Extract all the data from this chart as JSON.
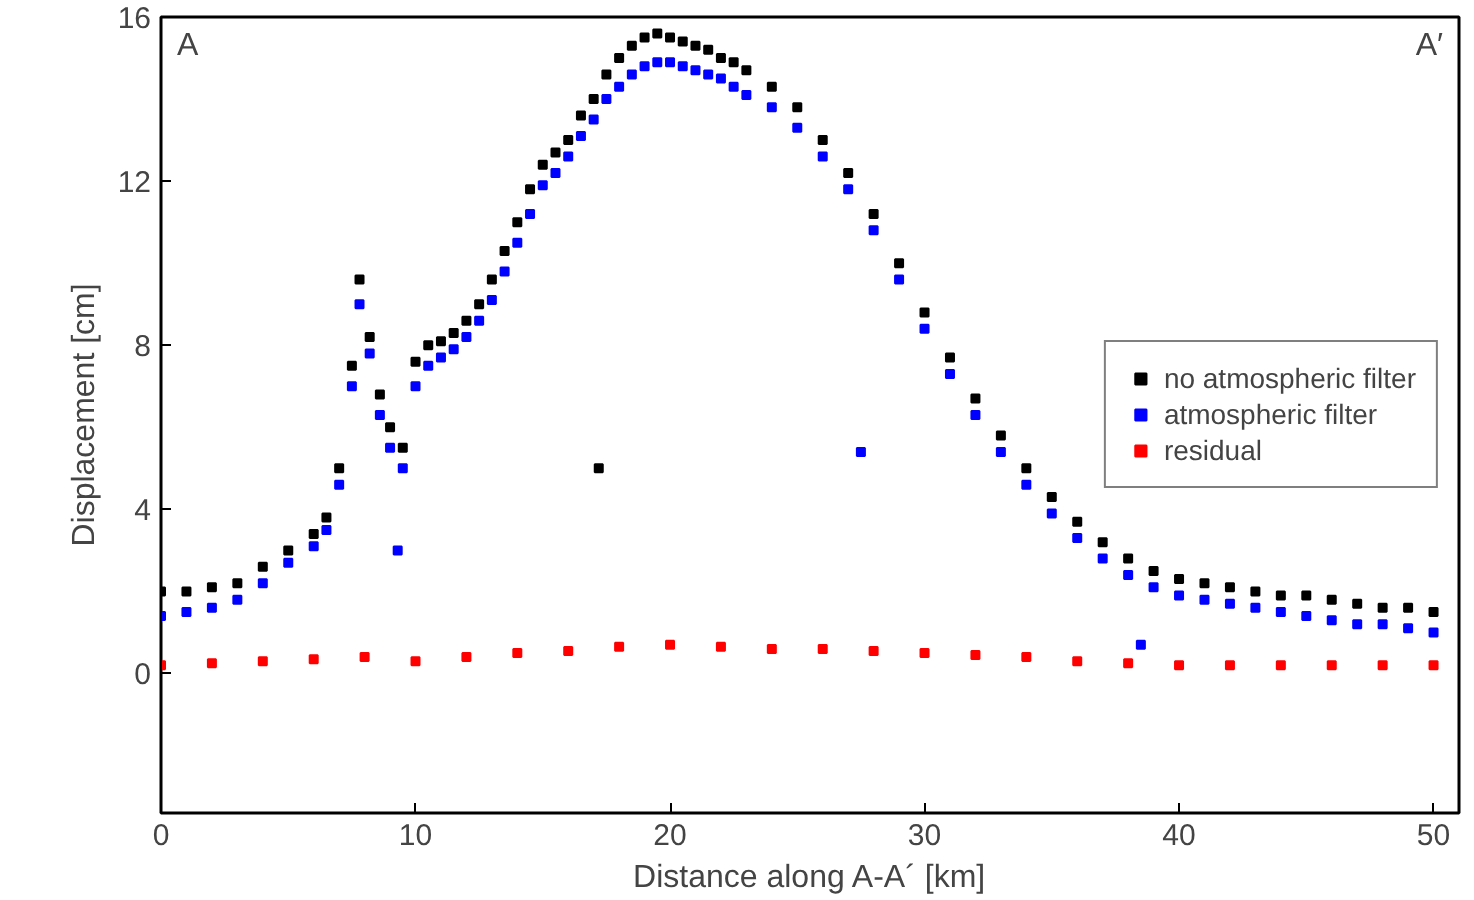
{
  "chart_data": {
    "type": "scatter",
    "xlabel": "Distance along A-A´ [km]",
    "ylabel": "Displacement [cm]",
    "xlim": [
      0,
      51
    ],
    "ylim": [
      -3.4,
      16
    ],
    "xticks": [
      0,
      10,
      20,
      30,
      40,
      50
    ],
    "yticks": [
      0,
      4,
      8,
      12,
      16
    ],
    "grid": false,
    "legend": "right",
    "marker": "square",
    "annotations": [
      "A",
      "A′"
    ],
    "series": [
      {
        "name": "no atmospheric filter",
        "color": "#000000",
        "x": [
          0,
          1,
          2,
          3,
          4,
          5,
          6,
          6.5,
          7,
          7.5,
          7.8,
          8.2,
          8.6,
          9,
          9.5,
          10,
          10.5,
          11,
          11.5,
          12,
          12.5,
          13,
          13.5,
          14,
          14.5,
          15,
          15.5,
          16,
          16.5,
          17,
          17.2,
          17.5,
          18,
          18.5,
          19,
          19.5,
          20,
          20.5,
          21,
          21.5,
          22,
          22.5,
          23,
          24,
          25,
          26,
          27,
          28,
          29,
          30,
          31,
          32,
          33,
          34,
          35,
          36,
          37,
          38,
          39,
          40,
          41,
          42,
          43,
          44,
          45,
          46,
          47,
          48,
          49,
          50
        ],
        "values": [
          2.0,
          2.0,
          2.1,
          2.2,
          2.6,
          3.0,
          3.4,
          3.8,
          5.0,
          7.5,
          9.6,
          8.2,
          6.8,
          6.0,
          5.5,
          7.6,
          8.0,
          8.1,
          8.3,
          8.6,
          9.0,
          9.6,
          10.3,
          11.0,
          11.8,
          12.4,
          12.7,
          13.0,
          13.6,
          14.0,
          5.0,
          14.6,
          15.0,
          15.3,
          15.5,
          15.6,
          15.5,
          15.4,
          15.3,
          15.2,
          15.0,
          14.9,
          14.7,
          14.3,
          13.8,
          13.0,
          12.2,
          11.2,
          10.0,
          8.8,
          7.7,
          6.7,
          5.8,
          5.0,
          4.3,
          3.7,
          3.2,
          2.8,
          2.5,
          2.3,
          2.2,
          2.1,
          2.0,
          1.9,
          1.9,
          1.8,
          1.7,
          1.6,
          1.6,
          1.5
        ]
      },
      {
        "name": "atmospheric filter",
        "color": "#0000ff",
        "x": [
          0,
          1,
          2,
          3,
          4,
          5,
          6,
          6.5,
          7,
          7.5,
          7.8,
          8.2,
          8.6,
          9,
          9.3,
          9.5,
          10,
          10.5,
          11,
          11.5,
          12,
          12.5,
          13,
          13.5,
          14,
          14.5,
          15,
          15.5,
          16,
          16.5,
          17,
          17.5,
          18,
          18.5,
          19,
          19.5,
          20,
          20.5,
          21,
          21.5,
          22,
          22.5,
          23,
          24,
          25,
          26,
          27,
          27.5,
          28,
          29,
          30,
          31,
          32,
          33,
          34,
          35,
          36,
          37,
          38,
          38.5,
          39,
          40,
          41,
          42,
          43,
          44,
          45,
          46,
          47,
          48,
          49,
          50
        ],
        "values": [
          1.4,
          1.5,
          1.6,
          1.8,
          2.2,
          2.7,
          3.1,
          3.5,
          4.6,
          7.0,
          9.0,
          7.8,
          6.3,
          5.5,
          3.0,
          5.0,
          7.0,
          7.5,
          7.7,
          7.9,
          8.2,
          8.6,
          9.1,
          9.8,
          10.5,
          11.2,
          11.9,
          12.2,
          12.6,
          13.1,
          13.5,
          14.0,
          14.3,
          14.6,
          14.8,
          14.9,
          14.9,
          14.8,
          14.7,
          14.6,
          14.5,
          14.3,
          14.1,
          13.8,
          13.3,
          12.6,
          11.8,
          5.4,
          10.8,
          9.6,
          8.4,
          7.3,
          6.3,
          5.4,
          4.6,
          3.9,
          3.3,
          2.8,
          2.4,
          0.7,
          2.1,
          1.9,
          1.8,
          1.7,
          1.6,
          1.5,
          1.4,
          1.3,
          1.2,
          1.2,
          1.1,
          1.0
        ]
      },
      {
        "name": "residual",
        "color": "#ff0000",
        "x": [
          0,
          2,
          4,
          6,
          8,
          10,
          12,
          14,
          16,
          18,
          20,
          22,
          24,
          26,
          28,
          30,
          32,
          34,
          36,
          38,
          40,
          42,
          44,
          46,
          48,
          50
        ],
        "values": [
          0.2,
          0.25,
          0.3,
          0.35,
          0.4,
          0.3,
          0.4,
          0.5,
          0.55,
          0.65,
          0.7,
          0.65,
          0.6,
          0.6,
          0.55,
          0.5,
          0.45,
          0.4,
          0.3,
          0.25,
          0.2,
          0.2,
          0.2,
          0.2,
          0.2,
          0.2
        ]
      }
    ]
  }
}
